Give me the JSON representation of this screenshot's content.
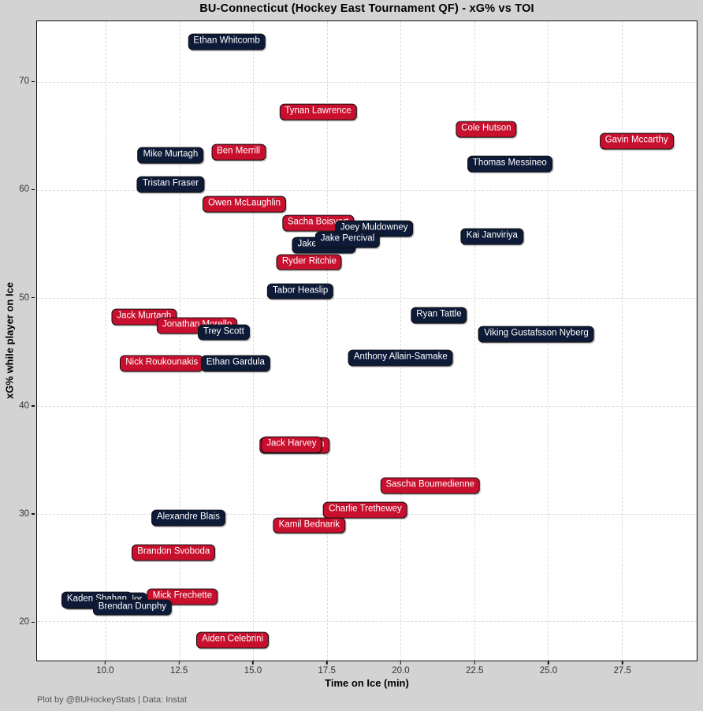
{
  "footer": "Plot by @BUHockeyStats | Data: Instat",
  "colors": {
    "figure_bg": "#d3d3d3",
    "plot_bg": "#ffffff",
    "grid": "#d9d9d9",
    "spine": "#111111",
    "red_label": "#c8102e",
    "navy_label": "#0e1b38",
    "label_text": "#ffffff",
    "label_border": "#111111",
    "tick_text": "#333333",
    "footer_text": "#555555",
    "title_text": "#000000"
  },
  "chart_data": {
    "type": "scatter",
    "title": "BU-Connecticut (Hockey East Tournament QF) - xG% vs TOI",
    "xlabel": "Time on Ice (min)",
    "ylabel": "xG% while player on Ice",
    "xlim": [
      7.67,
      30.04
    ],
    "ylim": [
      16.38,
      75.63
    ],
    "xticks": [
      10.0,
      12.5,
      15.0,
      17.5,
      20.0,
      22.5,
      25.0,
      27.5
    ],
    "xtick_labels": [
      "10.0",
      "12.5",
      "15.0",
      "17.5",
      "20.0",
      "22.5",
      "25.0",
      "27.5"
    ],
    "yticks": [
      20,
      30,
      40,
      50,
      60,
      70
    ],
    "ytick_labels": [
      "20",
      "30",
      "40",
      "50",
      "60",
      "70"
    ],
    "grid": true,
    "legend": "none",
    "label_colors": {
      "red": "BU scarlet",
      "navy": "Connecticut navy"
    },
    "players": [
      {
        "name": "Ethan Whitcomb",
        "toi_min": 14.1,
        "xg_pct": 73.7,
        "color": "navy"
      },
      {
        "name": "Tynan Lawrence",
        "toi_min": 17.2,
        "xg_pct": 67.2,
        "color": "red"
      },
      {
        "name": "Cole Hutson",
        "toi_min": 22.9,
        "xg_pct": 65.6,
        "color": "red"
      },
      {
        "name": "Gavin Mccarthy",
        "toi_min": 28.0,
        "xg_pct": 64.5,
        "color": "red"
      },
      {
        "name": "Mike Murtagh",
        "toi_min": 12.2,
        "xg_pct": 63.2,
        "color": "navy"
      },
      {
        "name": "Ben Merrill",
        "toi_min": 14.5,
        "xg_pct": 63.5,
        "color": "red"
      },
      {
        "name": "Thomas Messineo",
        "toi_min": 23.7,
        "xg_pct": 62.4,
        "color": "navy"
      },
      {
        "name": "Tristan Fraser",
        "toi_min": 12.2,
        "xg_pct": 60.5,
        "color": "navy"
      },
      {
        "name": "Owen McLaughlin",
        "toi_min": 14.7,
        "xg_pct": 58.7,
        "color": "red"
      },
      {
        "name": "Sacha Boisvert",
        "toi_min": 17.2,
        "xg_pct": 56.9,
        "color": "red"
      },
      {
        "name": "Jake Richard",
        "toi_min": 17.4,
        "xg_pct": 54.9,
        "color": "navy"
      },
      {
        "name": "Joey Muldowney",
        "toi_min": 19.1,
        "xg_pct": 56.4,
        "color": "navy"
      },
      {
        "name": "Jake Percival",
        "toi_min": 18.2,
        "xg_pct": 55.4,
        "color": "navy"
      },
      {
        "name": "Kai Janviriya",
        "toi_min": 23.1,
        "xg_pct": 55.7,
        "color": "navy"
      },
      {
        "name": "Ryder Ritchie",
        "toi_min": 16.9,
        "xg_pct": 53.3,
        "color": "red"
      },
      {
        "name": "Tabor Heaslip",
        "toi_min": 16.6,
        "xg_pct": 50.6,
        "color": "navy"
      },
      {
        "name": "Jack Murtagh",
        "toi_min": 11.3,
        "xg_pct": 48.2,
        "color": "red"
      },
      {
        "name": "Jonathan Morello",
        "toi_min": 13.1,
        "xg_pct": 47.4,
        "color": "red"
      },
      {
        "name": "Trey Scott",
        "toi_min": 14.0,
        "xg_pct": 46.8,
        "color": "navy"
      },
      {
        "name": "Ryan Tattle",
        "toi_min": 21.3,
        "xg_pct": 48.4,
        "color": "navy"
      },
      {
        "name": "Viking Gustafsson Nyberg",
        "toi_min": 24.6,
        "xg_pct": 46.6,
        "color": "navy"
      },
      {
        "name": "Nick Roukounakis",
        "toi_min": 11.9,
        "xg_pct": 43.9,
        "color": "red"
      },
      {
        "name": "Ethan Gardula",
        "toi_min": 14.4,
        "xg_pct": 43.9,
        "color": "navy"
      },
      {
        "name": "Anthony Allain-Samake",
        "toi_min": 20.0,
        "xg_pct": 44.4,
        "color": "navy"
      },
      {
        "name": "Cole Eiserman",
        "toi_min": 16.4,
        "xg_pct": 36.3,
        "color": "red"
      },
      {
        "name": "Jack Harvey",
        "toi_min": 16.3,
        "xg_pct": 36.4,
        "color": "red"
      },
      {
        "name": "Sascha Boumedienne",
        "toi_min": 21.0,
        "xg_pct": 32.6,
        "color": "red"
      },
      {
        "name": "Charlie Trethewey",
        "toi_min": 18.8,
        "xg_pct": 30.3,
        "color": "red"
      },
      {
        "name": "Kamil Bednarik",
        "toi_min": 16.9,
        "xg_pct": 28.9,
        "color": "red"
      },
      {
        "name": "Alexandre Blais",
        "toi_min": 12.8,
        "xg_pct": 29.6,
        "color": "navy"
      },
      {
        "name": "Brandon Svoboda",
        "toi_min": 12.3,
        "xg_pct": 26.4,
        "color": "red"
      },
      {
        "name": "Hudson Schandor",
        "toi_min": 10.0,
        "xg_pct": 21.9,
        "color": "navy"
      },
      {
        "name": "Kaden Shahan",
        "toi_min": 9.7,
        "xg_pct": 22.0,
        "color": "navy"
      },
      {
        "name": "Mick Frechette",
        "toi_min": 12.6,
        "xg_pct": 22.3,
        "color": "red"
      },
      {
        "name": "Brendan Dunphy",
        "toi_min": 10.9,
        "xg_pct": 21.3,
        "color": "navy"
      },
      {
        "name": "Aiden Celebrini",
        "toi_min": 14.3,
        "xg_pct": 18.3,
        "color": "red"
      }
    ]
  }
}
